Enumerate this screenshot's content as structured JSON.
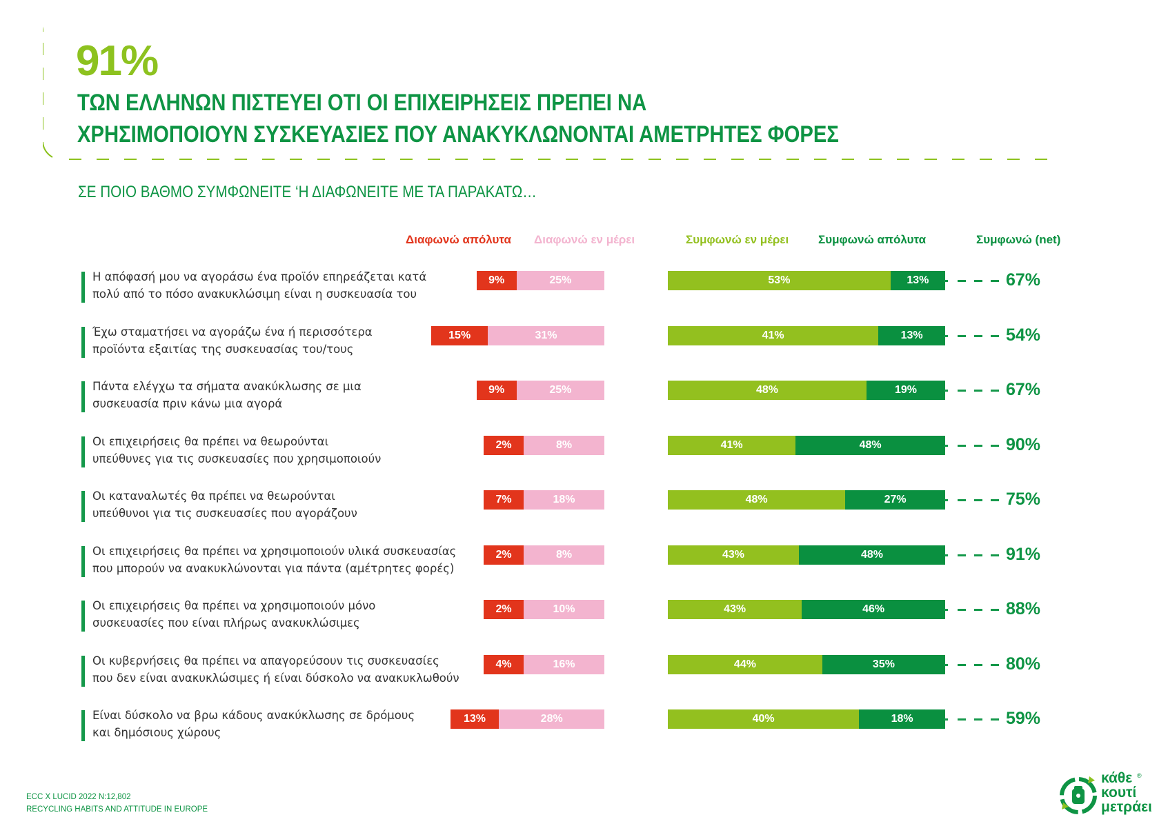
{
  "headline": {
    "percent": "91%",
    "line1": "ΤΩΝ ΕΛΛΗΝΩΝ ΠΙΣΤΕΥΕΙ ΟΤΙ ΟΙ ΕΠΙΧΕΙΡΗΣΕΙΣ ΠΡΕΠΕΙ ΝΑ",
    "line2": "ΧΡΗΣΙΜΟΠΟΙΟΥΝ ΣΥΣΚΕΥΑΣΙΕΣ ΠΟΥ ΑΝΑΚΥΚΛΩΝΟΝΤΑΙ ΑΜΕΤΡΗΤΕΣ ΦΟΡΕΣ"
  },
  "subtitle": "ΣΕ ΠΟΙΟ ΒΑΘΜΟ ΣΥΜΦΩΝΕΙΤΕ ‘Η ΔΙΑΦΩΝΕΙΤΕ ΜΕ ΤΑ ΠΑΡΑΚΑΤΩ…",
  "colors": {
    "disagree_strong": "#e2351c",
    "disagree_partial": "#f3b4cf",
    "agree_partial": "#93c01f",
    "agree_strong": "#0a9040",
    "brand_green": "#0e9444",
    "accent_lime": "#8dc21f"
  },
  "chart_data": {
    "type": "bar",
    "orientation": "horizontal-diverging-stacked",
    "series": [
      {
        "name": "Διαφωνώ απόλυτα",
        "values": [
          9,
          15,
          9,
          2,
          7,
          2,
          2,
          4,
          13
        ]
      },
      {
        "name": "Διαφωνώ εν μέρει",
        "values": [
          25,
          31,
          25,
          8,
          18,
          8,
          10,
          16,
          28
        ]
      },
      {
        "name": "Συμφωνώ εν μέρει",
        "values": [
          53,
          41,
          48,
          41,
          48,
          43,
          43,
          44,
          40
        ]
      },
      {
        "name": "Συμφωνώ απόλυτα",
        "values": [
          13,
          13,
          19,
          48,
          27,
          48,
          46,
          35,
          18
        ]
      }
    ],
    "net_label": "Συμφωνώ (net)",
    "net": [
      67,
      54,
      67,
      90,
      75,
      91,
      88,
      80,
      59
    ],
    "categories": [
      [
        "Η απόφασή μου να αγοράσω ένα προϊόν επηρεάζεται κατά",
        "πολύ από το πόσο ανακυκλώσιμη είναι η συσκευασία του"
      ],
      [
        "Έχω σταματήσει να αγοράζω ένα ή περισσότερα",
        "προϊόντα εξαιτίας της συσκευασίας του/τους"
      ],
      [
        "Πάντα ελέγχω τα σήματα ανακύκλωσης σε μια",
        "συσκευασία πριν κάνω μια αγορά"
      ],
      [
        "Οι επιχειρήσεις θα πρέπει να θεωρούνται",
        "υπεύθυνες για τις συσκευασίες που χρησιμοποιούν"
      ],
      [
        "Οι καταναλωτές θα πρέπει να θεωρούνται",
        "υπεύθυνοι για τις συσκευασίες που αγοράζουν"
      ],
      [
        "Οι επιχειρήσεις θα πρέπει να χρησιμοποιούν υλικά συσκευασίας",
        "που μπορούν να ανακυκλώνονται για πάντα (αμέτρητες φορές)"
      ],
      [
        "Οι επιχειρήσεις θα πρέπει να χρησιμοποιούν μόνο",
        "συσκευασίες που είναι πλήρως ανακυκλώσιμες"
      ],
      [
        "Οι κυβερνήσεις θα πρέπει να απαγορεύσουν τις συσκευασίες",
        "που δεν είναι ανακυκλώσιμες ή είναι δύσκολο να ανακυκλωθούν"
      ],
      [
        "Είναι δύσκολο να βρω κάδους ανακύκλωσης σε δρόμους",
        "και δημόσιους χώρους"
      ]
    ],
    "value_suffix": "%"
  },
  "footer": {
    "line1": "ECC X LUCID 2022 N:12,802",
    "line2": "RECYCLING HABITS AND ATTITUDE IN EUROPE"
  },
  "logo": {
    "line1": "κάθε",
    "line2": "κουτί",
    "line3": "μετράει",
    "registered": "®"
  }
}
